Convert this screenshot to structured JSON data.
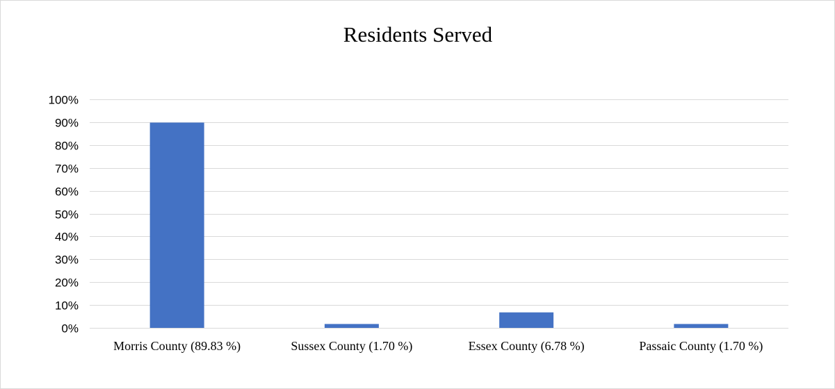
{
  "chart_data": {
    "type": "bar",
    "title": "Residents Served",
    "xlabel": "",
    "ylabel": "",
    "categories": [
      "Morris County (89.83 %)",
      "Sussex County (1.70 %)",
      "Essex County (6.78 %)",
      "Passaic County (1.70 %)"
    ],
    "values": [
      89.83,
      1.7,
      6.78,
      1.7
    ],
    "ylim": [
      0,
      100
    ],
    "yticks": [
      "0%",
      "10%",
      "20%",
      "30%",
      "40%",
      "50%",
      "60%",
      "70%",
      "80%",
      "90%",
      "100%"
    ],
    "grid": true,
    "legend": "none",
    "colors": {
      "bar": "#4472C4",
      "grid": "#d9d9d9",
      "axis": "#d9d9d9",
      "border": "#d9d9d9"
    }
  }
}
